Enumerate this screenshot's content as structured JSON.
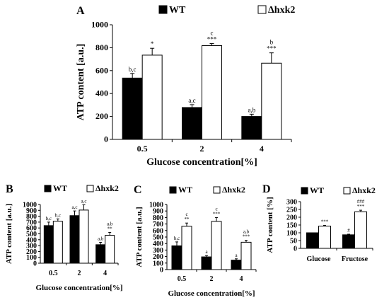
{
  "legend": {
    "wt": "WT",
    "mut": "Δhxk2"
  },
  "colors": {
    "wt": "#000000",
    "mut": "#ffffff",
    "stroke": "#000000"
  },
  "chart_data": [
    {
      "id": "A",
      "letter": "A",
      "type": "bar",
      "categories": [
        "0.5",
        "2",
        "4"
      ],
      "xlabel": "Glucose concentration[%]",
      "ylabel": "ATP content [a.u.]",
      "ylim": [
        0,
        1000
      ],
      "yticks": [
        0,
        200,
        400,
        600,
        800,
        1000
      ],
      "series": [
        {
          "name": "WT",
          "values": [
            535,
            278,
            200
          ],
          "errors": [
            40,
            25,
            20
          ],
          "labels": [
            [
              "b,c"
            ],
            [
              "a,c"
            ],
            [
              "a,b"
            ]
          ]
        },
        {
          "name": "Δhxk2",
          "values": [
            735,
            818,
            665
          ],
          "errors": [
            60,
            18,
            90
          ],
          "labels": [
            [
              "*"
            ],
            [
              "c",
              "***"
            ],
            [
              "b",
              "***"
            ]
          ]
        }
      ]
    },
    {
      "id": "B",
      "letter": "B",
      "type": "bar",
      "categories": [
        "0.5",
        "2",
        "4"
      ],
      "xlabel": "Glucose concentration[%]",
      "ylabel": "ATP content [a.u.]",
      "ylim": [
        0,
        1000
      ],
      "yticks": [
        0,
        100,
        200,
        300,
        400,
        500,
        600,
        700,
        800,
        900,
        1000
      ],
      "series": [
        {
          "name": "WT",
          "values": [
            640,
            810,
            315
          ],
          "errors": [
            60,
            80,
            40
          ],
          "labels": [
            [
              "b,c"
            ],
            [
              "a,c"
            ],
            [
              "a,b"
            ]
          ]
        },
        {
          "name": "Δhxk2",
          "values": [
            715,
            905,
            475
          ],
          "errors": [
            40,
            90,
            50
          ],
          "labels": [
            [
              "b,c"
            ],
            [
              "a,c"
            ],
            [
              "a,b",
              "**"
            ]
          ]
        }
      ]
    },
    {
      "id": "C",
      "letter": "C",
      "type": "bar",
      "categories": [
        "0.5",
        "2",
        "4"
      ],
      "xlabel": "Glucose concentration[%]",
      "ylabel": "ATP content [a.u.]",
      "ylim": [
        0,
        1000
      ],
      "yticks": [
        0,
        100,
        200,
        300,
        400,
        500,
        600,
        700,
        800,
        900,
        1000
      ],
      "series": [
        {
          "name": "WT",
          "values": [
            365,
            195,
            145
          ],
          "errors": [
            60,
            20,
            20
          ],
          "labels": [
            [
              "b,c"
            ],
            [
              "a"
            ],
            [
              "a"
            ]
          ]
        },
        {
          "name": "Δhxk2",
          "values": [
            665,
            740,
            420
          ],
          "errors": [
            50,
            60,
            30
          ],
          "labels": [
            [
              "c",
              "**"
            ],
            [
              "c",
              "***"
            ],
            [
              "a,b",
              "***"
            ]
          ]
        }
      ]
    },
    {
      "id": "D",
      "letter": "D",
      "type": "bar",
      "categories": [
        "Glucose",
        "Fructose"
      ],
      "xlabel": "",
      "ylabel": "ATP content [%]",
      "ylim": [
        0,
        300
      ],
      "yticks": [
        0,
        50,
        100,
        150,
        200,
        250,
        300
      ],
      "series": [
        {
          "name": "WT",
          "values": [
            100,
            87
          ],
          "errors": [
            0,
            4
          ],
          "labels": [
            [],
            [
              "#"
            ]
          ]
        },
        {
          "name": "Δhxk2",
          "values": [
            143,
            235
          ],
          "errors": [
            5,
            10
          ],
          "labels": [
            [
              "***"
            ],
            [
              "###",
              "***"
            ]
          ]
        }
      ]
    }
  ]
}
